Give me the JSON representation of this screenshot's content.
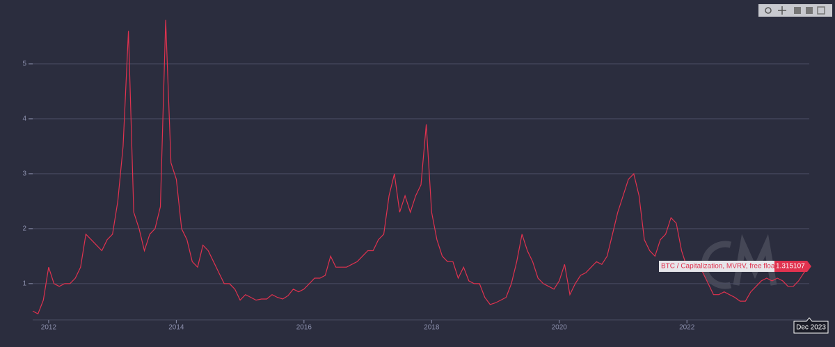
{
  "chart_data": {
    "type": "line",
    "x": [
      "2011-10",
      "2011-11",
      "2011-12",
      "2012-01",
      "2012-02",
      "2012-03",
      "2012-04",
      "2012-05",
      "2012-06",
      "2012-07",
      "2012-08",
      "2012-09",
      "2012-10",
      "2012-11",
      "2012-12",
      "2013-01",
      "2013-02",
      "2013-03",
      "2013-04",
      "2013-05",
      "2013-06",
      "2013-07",
      "2013-08",
      "2013-09",
      "2013-10",
      "2013-11",
      "2013-12",
      "2014-01",
      "2014-02",
      "2014-03",
      "2014-04",
      "2014-05",
      "2014-06",
      "2014-07",
      "2014-08",
      "2014-09",
      "2014-10",
      "2014-11",
      "2014-12",
      "2015-01",
      "2015-02",
      "2015-03",
      "2015-04",
      "2015-05",
      "2015-06",
      "2015-07",
      "2015-08",
      "2015-09",
      "2015-10",
      "2015-11",
      "2015-12",
      "2016-01",
      "2016-02",
      "2016-03",
      "2016-04",
      "2016-05",
      "2016-06",
      "2016-07",
      "2016-08",
      "2016-09",
      "2016-10",
      "2016-11",
      "2016-12",
      "2017-01",
      "2017-02",
      "2017-03",
      "2017-04",
      "2017-05",
      "2017-06",
      "2017-07",
      "2017-08",
      "2017-09",
      "2017-10",
      "2017-11",
      "2017-12",
      "2018-01",
      "2018-02",
      "2018-03",
      "2018-04",
      "2018-05",
      "2018-06",
      "2018-07",
      "2018-08",
      "2018-09",
      "2018-10",
      "2018-11",
      "2018-12",
      "2019-01",
      "2019-02",
      "2019-03",
      "2019-04",
      "2019-05",
      "2019-06",
      "2019-07",
      "2019-08",
      "2019-09",
      "2019-10",
      "2019-11",
      "2019-12",
      "2020-01",
      "2020-02",
      "2020-03",
      "2020-04",
      "2020-05",
      "2020-06",
      "2020-07",
      "2020-08",
      "2020-09",
      "2020-10",
      "2020-11",
      "2020-12",
      "2021-01",
      "2021-02",
      "2021-03",
      "2021-04",
      "2021-05",
      "2021-06",
      "2021-07",
      "2021-08",
      "2021-09",
      "2021-10",
      "2021-11",
      "2021-12",
      "2022-01",
      "2022-02",
      "2022-03",
      "2022-04",
      "2022-05",
      "2022-06",
      "2022-07",
      "2022-08",
      "2022-09",
      "2022-10",
      "2022-11",
      "2022-12",
      "2023-01",
      "2023-02",
      "2023-03",
      "2023-04",
      "2023-05",
      "2023-06",
      "2023-07",
      "2023-08",
      "2023-09",
      "2023-10",
      "2023-11",
      "2023-12"
    ],
    "series": [
      {
        "name": "BTC / Capitalization, MVRV, free float",
        "color": "#e0324f",
        "values": [
          0.5,
          0.45,
          0.7,
          1.3,
          1.0,
          0.95,
          1.0,
          1.0,
          1.1,
          1.3,
          1.9,
          1.8,
          1.7,
          1.6,
          1.8,
          1.9,
          2.5,
          3.5,
          5.6,
          2.3,
          2.0,
          1.6,
          1.9,
          2.0,
          2.4,
          5.8,
          3.2,
          2.9,
          2.0,
          1.8,
          1.4,
          1.3,
          1.7,
          1.6,
          1.4,
          1.2,
          1.0,
          1.0,
          0.9,
          0.7,
          0.8,
          0.75,
          0.7,
          0.72,
          0.72,
          0.8,
          0.75,
          0.72,
          0.78,
          0.9,
          0.85,
          0.9,
          1.0,
          1.1,
          1.1,
          1.15,
          1.5,
          1.3,
          1.3,
          1.3,
          1.35,
          1.4,
          1.5,
          1.6,
          1.6,
          1.8,
          1.9,
          2.6,
          3.0,
          2.3,
          2.6,
          2.3,
          2.6,
          2.8,
          3.9,
          2.3,
          1.8,
          1.5,
          1.4,
          1.4,
          1.1,
          1.3,
          1.05,
          1.0,
          1.0,
          0.75,
          0.62,
          0.65,
          0.7,
          0.75,
          1.0,
          1.4,
          1.9,
          1.6,
          1.4,
          1.1,
          1.0,
          0.95,
          0.9,
          1.05,
          1.35,
          0.8,
          1.0,
          1.15,
          1.2,
          1.3,
          1.4,
          1.35,
          1.5,
          1.9,
          2.3,
          2.6,
          2.9,
          3.0,
          2.6,
          1.8,
          1.6,
          1.5,
          1.8,
          1.9,
          2.2,
          2.1,
          1.6,
          1.3,
          1.25,
          1.35,
          1.2,
          1.0,
          0.8,
          0.8,
          0.85,
          0.8,
          0.75,
          0.68,
          0.68,
          0.85,
          0.95,
          1.05,
          1.1,
          1.05,
          1.1,
          1.05,
          0.95,
          0.95,
          1.05,
          1.2,
          1.315107
        ]
      }
    ],
    "xlim": [
      "2011-10",
      "2023-12"
    ],
    "xticks": [
      "2012",
      "2014",
      "2016",
      "2018",
      "2020",
      "2022"
    ],
    "ylim": [
      0.34,
      5.91
    ],
    "yticks": [
      1,
      2,
      3,
      4,
      5
    ],
    "grid": true,
    "hover_label": "Dec 2023"
  }
}
